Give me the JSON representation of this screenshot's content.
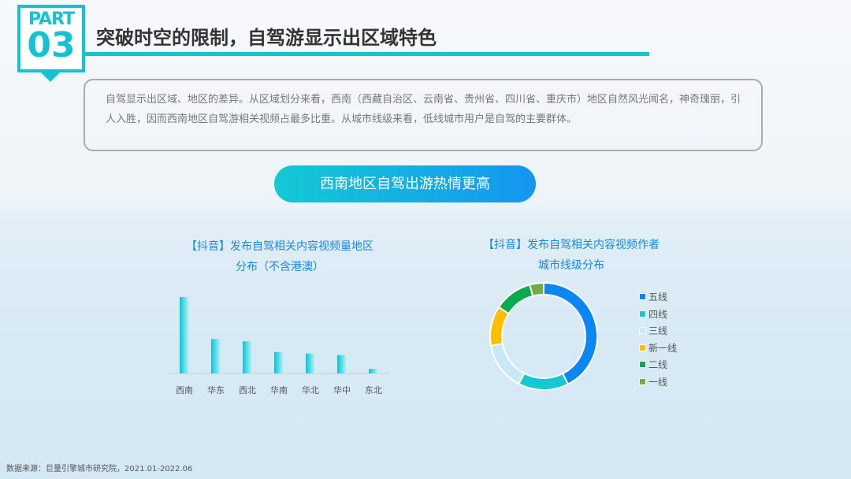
{
  "header": {
    "part_label": "PART",
    "part_number": "03",
    "title": "突破时空的限制，自驾游显示出区域特色"
  },
  "description": "自驾显示出区域、地区的差异。从区域划分来看，西南（西藏自治区、云南省、贵州省、四川省、重庆市）地区自然风光闻名，神奇瑰丽，引人入胜，因而西南地区自驾游相关视频占最多比重。从城市线级来看，低线城市用户是自驾的主要群体。",
  "highlight": "西南地区自驾出游热情更高",
  "source": "数据来源：巨量引擎城市研究院，2021.01-2022.06",
  "colors": {
    "accent": "#14c3d1",
    "title_blue": "#1489e6"
  },
  "chart_data": [
    {
      "type": "bar",
      "title": "【抖音】发布自驾相关内容视频量地区分布（不含港澳）",
      "title_lines": [
        "【抖音】发布自驾相关内容视频量地区",
        "分布（不含港澳）"
      ],
      "categories": [
        "西南",
        "华东",
        "西北",
        "华南",
        "华北",
        "华中",
        "东北"
      ],
      "values": [
        100,
        45,
        42,
        28,
        26,
        24,
        6
      ],
      "grid": false
    },
    {
      "type": "pie",
      "title": "【抖音】发布自驾相关内容视频作者城市线级分布",
      "title_lines": [
        "【抖音】发布自驾相关内容视频作者",
        "城市线级分布"
      ],
      "donut": true,
      "legend_position": "right",
      "series": [
        {
          "name": "五线",
          "value": 42.5,
          "color": "#0a86f5"
        },
        {
          "name": "四线",
          "value": 15.2,
          "color": "#14c9d4"
        },
        {
          "name": "三线",
          "value": 14.5,
          "color": "#c8e8f5"
        },
        {
          "name": "新一线",
          "value": 12,
          "color": "#ffbe00"
        },
        {
          "name": "二线",
          "value": 11.6,
          "color": "#0aab4c"
        },
        {
          "name": "一线",
          "value": 4.2,
          "color": "#70ad47"
        }
      ]
    }
  ]
}
